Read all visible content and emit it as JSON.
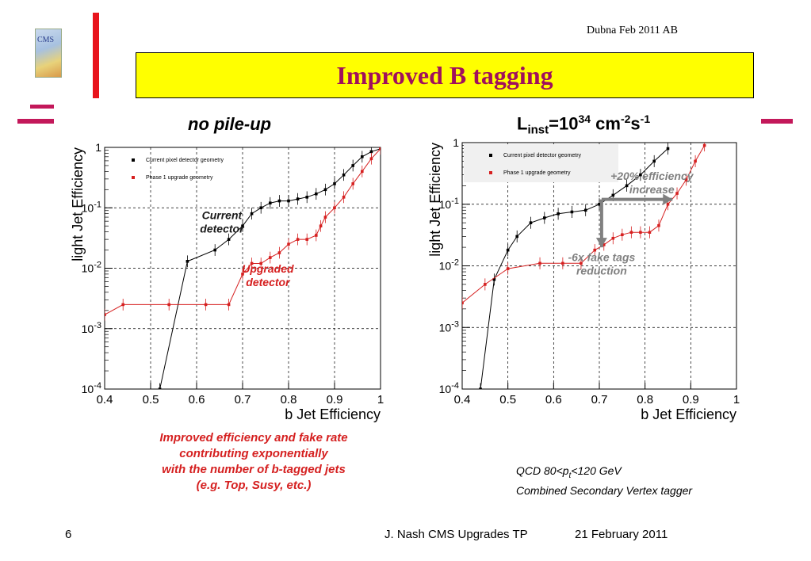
{
  "slide": {
    "header_note": "Dubna Feb 2011 AB",
    "title": "Improved B tagging",
    "logo_text": "CMS",
    "colors": {
      "title_bg": "#ffff00",
      "title_text": "#a0105c",
      "accent_red": "#e8141c",
      "accent_magenta": "#c3185a",
      "note_red": "#d52020"
    },
    "note_left": [
      "Improved efficiency and fake rate",
      "contributing exponentially",
      "with the number of b-tagged jets",
      "(e.g. Top, Susy, etc.)"
    ],
    "note_right": [
      {
        "pre": "QCD 80<p",
        "sub": "t",
        "post": "<120 GeV"
      },
      {
        "pre": "Combined Secondary Vertex tagger"
      }
    ],
    "footer": {
      "page": "6",
      "credit": "J. Nash CMS Upgrades TP",
      "date": "21 February 2011"
    }
  },
  "chart_data": [
    {
      "type": "line",
      "plot_title": "no pile-up",
      "xlabel": "b Jet Efficiency",
      "ylabel": "light Jet Efficiency",
      "xlim": [
        0.4,
        1.0
      ],
      "ylim": [
        0.0001,
        1
      ],
      "yscale": "log",
      "grid": true,
      "x_ticks": [
        "0.4",
        "0.5",
        "0.6",
        "0.7",
        "0.8",
        "0.9",
        "1"
      ],
      "y_ticks": [
        {
          "base": "1",
          "exp": ""
        },
        {
          "base": "10",
          "exp": "-1"
        },
        {
          "base": "10",
          "exp": "-2"
        },
        {
          "base": "10",
          "exp": "-3"
        },
        {
          "base": "10",
          "exp": "-4"
        }
      ],
      "legend_position": "top-left",
      "series": [
        {
          "name": "Current pixel detector geometry",
          "color": "#000000",
          "x": [
            0.52,
            0.58,
            0.64,
            0.67,
            0.7,
            0.72,
            0.74,
            0.76,
            0.78,
            0.8,
            0.82,
            0.84,
            0.86,
            0.88,
            0.9,
            0.92,
            0.94,
            0.96,
            0.98,
            1.0
          ],
          "y": [
            0.0001,
            0.013,
            0.02,
            0.03,
            0.05,
            0.08,
            0.1,
            0.12,
            0.13,
            0.13,
            0.14,
            0.15,
            0.17,
            0.2,
            0.25,
            0.35,
            0.5,
            0.7,
            0.85,
            0.95
          ]
        },
        {
          "name": "Phase 1 upgrade geometry",
          "color": "#d62020",
          "x": [
            0.4,
            0.44,
            0.54,
            0.62,
            0.67,
            0.7,
            0.72,
            0.74,
            0.76,
            0.78,
            0.8,
            0.82,
            0.84,
            0.86,
            0.87,
            0.88,
            0.9,
            0.92,
            0.94,
            0.96,
            0.98,
            1.0
          ],
          "y": [
            0.0017,
            0.0025,
            0.0025,
            0.0025,
            0.0025,
            0.008,
            0.012,
            0.012,
            0.015,
            0.018,
            0.025,
            0.03,
            0.03,
            0.035,
            0.05,
            0.07,
            0.1,
            0.15,
            0.25,
            0.4,
            0.65,
            0.95
          ]
        }
      ],
      "annotations": [
        {
          "text": [
            "Current",
            "detector"
          ],
          "color": "#1a1a1a",
          "x": 0.655,
          "y": 0.065
        },
        {
          "text": [
            "Upgraded",
            "detector"
          ],
          "color": "#d62020",
          "x": 0.755,
          "y": 0.0085
        }
      ]
    },
    {
      "type": "line",
      "plot_title": {
        "pre": "L",
        "sub": "inst",
        "mid": "=10",
        "sup1": "34",
        "post": " cm",
        "sup2": "-2",
        "post2": "s",
        "sup3": "-1"
      },
      "xlabel": "b Jet Efficiency",
      "ylabel": "light Jet Efficiency",
      "xlim": [
        0.4,
        1.0
      ],
      "ylim": [
        0.0001,
        1
      ],
      "yscale": "log",
      "grid": true,
      "x_ticks": [
        "0.4",
        "0.5",
        "0.6",
        "0.7",
        "0.8",
        "0.9",
        "1"
      ],
      "y_ticks": [
        {
          "base": "1",
          "exp": ""
        },
        {
          "base": "10",
          "exp": "-1"
        },
        {
          "base": "10",
          "exp": "-2"
        },
        {
          "base": "10",
          "exp": "-3"
        },
        {
          "base": "10",
          "exp": "-4"
        }
      ],
      "legend_position": "top-left",
      "series": [
        {
          "name": "Current pixel detector geometry",
          "color": "#000000",
          "x": [
            0.44,
            0.47,
            0.5,
            0.52,
            0.55,
            0.58,
            0.61,
            0.64,
            0.67,
            0.7,
            0.73,
            0.76,
            0.79,
            0.82,
            0.85
          ],
          "y": [
            0.0001,
            0.006,
            0.018,
            0.03,
            0.05,
            0.06,
            0.07,
            0.075,
            0.08,
            0.1,
            0.14,
            0.2,
            0.3,
            0.5,
            0.8
          ]
        },
        {
          "name": "Phase 1 upgrade geometry",
          "color": "#d62020",
          "x": [
            0.4,
            0.45,
            0.5,
            0.57,
            0.62,
            0.66,
            0.69,
            0.71,
            0.73,
            0.75,
            0.77,
            0.79,
            0.81,
            0.83,
            0.85,
            0.87,
            0.89,
            0.91,
            0.93
          ],
          "y": [
            0.0025,
            0.005,
            0.009,
            0.011,
            0.011,
            0.011,
            0.018,
            0.022,
            0.028,
            0.032,
            0.035,
            0.035,
            0.035,
            0.045,
            0.1,
            0.15,
            0.25,
            0.5,
            0.9
          ]
        }
      ],
      "annotations": [
        {
          "text": [
            "+20% efficiency",
            "increase"
          ],
          "color": "#808080",
          "x": 0.815,
          "y": 0.25
        },
        {
          "text": [
            "-6x fake tags",
            "reduction"
          ],
          "color": "#808080",
          "x": 0.705,
          "y": 0.012
        }
      ],
      "arrows": [
        {
          "from": [
            0.705,
            0.12
          ],
          "to": [
            0.86,
            0.12
          ],
          "color": "#808080"
        },
        {
          "from": [
            0.705,
            0.12
          ],
          "to": [
            0.705,
            0.02
          ],
          "color": "#808080"
        }
      ]
    }
  ]
}
